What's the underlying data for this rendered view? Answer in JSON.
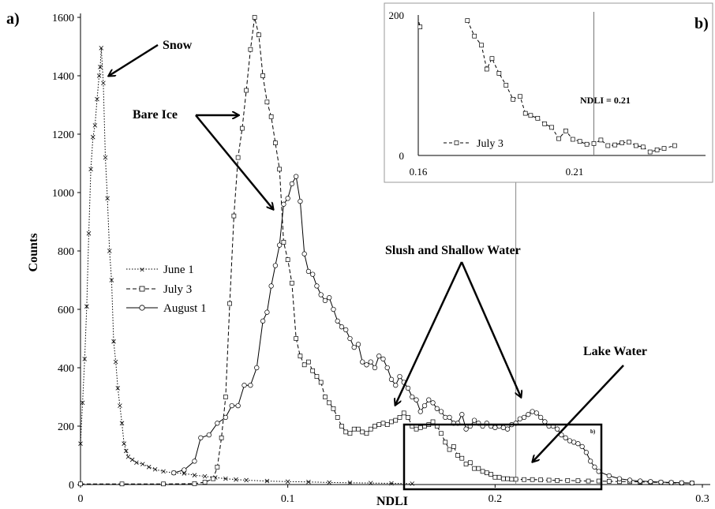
{
  "chart_data": {
    "type": "line",
    "panel_labels": {
      "main": "a)",
      "inset": "b)",
      "box": "b)"
    },
    "xlabel": "NDLI",
    "ylabel": "Counts",
    "xlim": [
      0,
      0.3
    ],
    "ylim": [
      0,
      1600
    ],
    "x_ticks": [
      0,
      0.1,
      0.2,
      0.3
    ],
    "x_tick_labels": [
      "0",
      "0.1",
      "0.2",
      "0.3"
    ],
    "y_ticks": [
      0,
      200,
      400,
      600,
      800,
      1000,
      1200,
      1400,
      1600
    ],
    "y_tick_labels": [
      "0",
      "200",
      "400",
      "600",
      "800",
      "1000",
      "1200",
      "1400",
      "1600"
    ],
    "legend": {
      "placement": "center-left",
      "entries": [
        "June 1",
        "July 3",
        "August 1"
      ]
    },
    "series": [
      {
        "name": "June 1",
        "style": "dotted",
        "marker": "x",
        "points": [
          [
            0,
            140
          ],
          [
            0.001,
            280
          ],
          [
            0.002,
            430
          ],
          [
            0.003,
            610
          ],
          [
            0.004,
            860
          ],
          [
            0.005,
            1080
          ],
          [
            0.006,
            1190
          ],
          [
            0.007,
            1230
          ],
          [
            0.008,
            1320
          ],
          [
            0.009,
            1400
          ],
          [
            0.0095,
            1430
          ],
          [
            0.01,
            1495
          ],
          [
            0.011,
            1375
          ],
          [
            0.012,
            1120
          ],
          [
            0.013,
            980
          ],
          [
            0.014,
            800
          ],
          [
            0.015,
            700
          ],
          [
            0.016,
            490
          ],
          [
            0.017,
            420
          ],
          [
            0.018,
            330
          ],
          [
            0.019,
            270
          ],
          [
            0.02,
            210
          ],
          [
            0.021,
            140
          ],
          [
            0.022,
            115
          ],
          [
            0.023,
            95
          ],
          [
            0.025,
            85
          ],
          [
            0.027,
            75
          ],
          [
            0.03,
            70
          ],
          [
            0.033,
            60
          ],
          [
            0.036,
            52
          ],
          [
            0.04,
            45
          ],
          [
            0.045,
            40
          ],
          [
            0.05,
            38
          ],
          [
            0.055,
            32
          ],
          [
            0.06,
            28
          ],
          [
            0.065,
            24
          ],
          [
            0.07,
            20
          ],
          [
            0.075,
            17
          ],
          [
            0.08,
            15
          ],
          [
            0.09,
            12
          ],
          [
            0.1,
            10
          ],
          [
            0.11,
            9
          ],
          [
            0.12,
            7
          ],
          [
            0.13,
            6
          ],
          [
            0.14,
            5
          ],
          [
            0.15,
            4
          ],
          [
            0.16,
            3
          ]
        ]
      },
      {
        "name": "July 3",
        "style": "dashed",
        "marker": "square",
        "points": [
          [
            0,
            2
          ],
          [
            0.02,
            2
          ],
          [
            0.04,
            2
          ],
          [
            0.055,
            3
          ],
          [
            0.06,
            8
          ],
          [
            0.064,
            20
          ],
          [
            0.066,
            60
          ],
          [
            0.068,
            160
          ],
          [
            0.07,
            300
          ],
          [
            0.072,
            620
          ],
          [
            0.074,
            920
          ],
          [
            0.076,
            1120
          ],
          [
            0.078,
            1220
          ],
          [
            0.08,
            1350
          ],
          [
            0.082,
            1490
          ],
          [
            0.084,
            1600
          ],
          [
            0.086,
            1540
          ],
          [
            0.088,
            1400
          ],
          [
            0.09,
            1310
          ],
          [
            0.092,
            1260
          ],
          [
            0.094,
            1170
          ],
          [
            0.096,
            1080
          ],
          [
            0.098,
            830
          ],
          [
            0.1,
            770
          ],
          [
            0.102,
            690
          ],
          [
            0.104,
            500
          ],
          [
            0.106,
            440
          ],
          [
            0.108,
            410
          ],
          [
            0.11,
            420
          ],
          [
            0.112,
            390
          ],
          [
            0.114,
            370
          ],
          [
            0.116,
            350
          ],
          [
            0.118,
            300
          ],
          [
            0.12,
            280
          ],
          [
            0.122,
            260
          ],
          [
            0.124,
            230
          ],
          [
            0.126,
            200
          ],
          [
            0.128,
            180
          ],
          [
            0.13,
            175
          ],
          [
            0.132,
            190
          ],
          [
            0.134,
            190
          ],
          [
            0.136,
            180
          ],
          [
            0.138,
            175
          ],
          [
            0.14,
            190
          ],
          [
            0.142,
            200
          ],
          [
            0.144,
            205
          ],
          [
            0.146,
            210
          ],
          [
            0.148,
            205
          ],
          [
            0.15,
            215
          ],
          [
            0.152,
            220
          ],
          [
            0.154,
            230
          ],
          [
            0.156,
            245
          ],
          [
            0.158,
            230
          ],
          [
            0.16,
            200
          ],
          [
            0.162,
            190
          ],
          [
            0.164,
            195
          ],
          [
            0.166,
            200
          ],
          [
            0.168,
            205
          ],
          [
            0.17,
            215
          ],
          [
            0.172,
            200
          ],
          [
            0.174,
            175
          ],
          [
            0.176,
            145
          ],
          [
            0.178,
            120
          ],
          [
            0.18,
            130
          ],
          [
            0.182,
            100
          ],
          [
            0.184,
            90
          ],
          [
            0.186,
            70
          ],
          [
            0.188,
            75
          ],
          [
            0.19,
            55
          ],
          [
            0.192,
            55
          ],
          [
            0.194,
            45
          ],
          [
            0.196,
            40
          ],
          [
            0.198,
            35
          ],
          [
            0.2,
            25
          ],
          [
            0.202,
            25
          ],
          [
            0.204,
            20
          ],
          [
            0.206,
            20
          ],
          [
            0.208,
            18
          ],
          [
            0.21,
            18
          ],
          [
            0.214,
            17
          ],
          [
            0.218,
            17
          ],
          [
            0.222,
            16
          ],
          [
            0.226,
            15
          ],
          [
            0.23,
            14
          ],
          [
            0.235,
            14
          ],
          [
            0.24,
            13
          ],
          [
            0.245,
            12
          ],
          [
            0.25,
            12
          ],
          [
            0.255,
            11
          ],
          [
            0.26,
            10
          ],
          [
            0.265,
            10
          ],
          [
            0.27,
            9
          ],
          [
            0.275,
            8
          ],
          [
            0.28,
            7
          ],
          [
            0.285,
            6
          ],
          [
            0.29,
            5
          ],
          [
            0.295,
            5
          ]
        ]
      },
      {
        "name": "August 1",
        "style": "solid",
        "marker": "circle",
        "points": [
          [
            0.045,
            40
          ],
          [
            0.05,
            50
          ],
          [
            0.055,
            80
          ],
          [
            0.058,
            160
          ],
          [
            0.062,
            170
          ],
          [
            0.066,
            210
          ],
          [
            0.07,
            230
          ],
          [
            0.073,
            270
          ],
          [
            0.076,
            270
          ],
          [
            0.079,
            340
          ],
          [
            0.082,
            340
          ],
          [
            0.085,
            400
          ],
          [
            0.088,
            560
          ],
          [
            0.09,
            590
          ],
          [
            0.092,
            680
          ],
          [
            0.094,
            750
          ],
          [
            0.096,
            820
          ],
          [
            0.098,
            960
          ],
          [
            0.1,
            980
          ],
          [
            0.102,
            1030
          ],
          [
            0.104,
            1055
          ],
          [
            0.106,
            970
          ],
          [
            0.108,
            790
          ],
          [
            0.11,
            730
          ],
          [
            0.112,
            720
          ],
          [
            0.114,
            680
          ],
          [
            0.116,
            650
          ],
          [
            0.118,
            630
          ],
          [
            0.12,
            640
          ],
          [
            0.122,
            600
          ],
          [
            0.124,
            560
          ],
          [
            0.126,
            540
          ],
          [
            0.128,
            530
          ],
          [
            0.13,
            500
          ],
          [
            0.132,
            470
          ],
          [
            0.134,
            480
          ],
          [
            0.136,
            420
          ],
          [
            0.138,
            410
          ],
          [
            0.14,
            420
          ],
          [
            0.142,
            400
          ],
          [
            0.144,
            440
          ],
          [
            0.146,
            430
          ],
          [
            0.148,
            400
          ],
          [
            0.15,
            360
          ],
          [
            0.152,
            340
          ],
          [
            0.154,
            370
          ],
          [
            0.156,
            350
          ],
          [
            0.158,
            330
          ],
          [
            0.16,
            300
          ],
          [
            0.162,
            290
          ],
          [
            0.164,
            250
          ],
          [
            0.166,
            270
          ],
          [
            0.168,
            290
          ],
          [
            0.17,
            280
          ],
          [
            0.172,
            260
          ],
          [
            0.174,
            250
          ],
          [
            0.176,
            230
          ],
          [
            0.178,
            230
          ],
          [
            0.18,
            210
          ],
          [
            0.182,
            210
          ],
          [
            0.184,
            240
          ],
          [
            0.186,
            190
          ],
          [
            0.188,
            200
          ],
          [
            0.19,
            220
          ],
          [
            0.192,
            210
          ],
          [
            0.194,
            200
          ],
          [
            0.196,
            210
          ],
          [
            0.198,
            200
          ],
          [
            0.2,
            195
          ],
          [
            0.202,
            200
          ],
          [
            0.204,
            195
          ],
          [
            0.206,
            190
          ],
          [
            0.208,
            205
          ],
          [
            0.21,
            210
          ],
          [
            0.212,
            225
          ],
          [
            0.214,
            230
          ],
          [
            0.216,
            240
          ],
          [
            0.218,
            250
          ],
          [
            0.22,
            245
          ],
          [
            0.222,
            230
          ],
          [
            0.224,
            215
          ],
          [
            0.226,
            200
          ],
          [
            0.228,
            200
          ],
          [
            0.23,
            190
          ],
          [
            0.232,
            170
          ],
          [
            0.234,
            160
          ],
          [
            0.236,
            150
          ],
          [
            0.238,
            145
          ],
          [
            0.24,
            140
          ],
          [
            0.242,
            130
          ],
          [
            0.244,
            110
          ],
          [
            0.246,
            80
          ],
          [
            0.248,
            60
          ],
          [
            0.25,
            45
          ],
          [
            0.255,
            30
          ],
          [
            0.26,
            20
          ],
          [
            0.265,
            15
          ],
          [
            0.27,
            12
          ],
          [
            0.275,
            10
          ],
          [
            0.28,
            8
          ],
          [
            0.285,
            7
          ],
          [
            0.29,
            6
          ],
          [
            0.295,
            5
          ]
        ]
      }
    ],
    "annotations": [
      "Snow",
      "Bare Ice",
      "Slush and Shallow Water",
      "Lake Water"
    ],
    "reference_line": {
      "x": 0.21
    },
    "inset": {
      "xlim": [
        0.16,
        0.24
      ],
      "ylim": [
        0,
        200
      ],
      "x_tick_labels": [
        "0.16",
        "0.21"
      ],
      "y_tick_labels": [
        "0",
        "200"
      ],
      "legend_entry": "July 3",
      "threshold_label": "NDLI = 0.21",
      "threshold_x": 0.21,
      "series_points": [
        [
          0.1595,
          205
        ],
        [
          0.1605,
          183
        ],
        [
          0.174,
          192
        ],
        [
          0.176,
          170
        ],
        [
          0.178,
          157
        ],
        [
          0.1795,
          123
        ],
        [
          0.181,
          138
        ],
        [
          0.183,
          117
        ],
        [
          0.185,
          100
        ],
        [
          0.187,
          80
        ],
        [
          0.189,
          84
        ],
        [
          0.1905,
          60
        ],
        [
          0.192,
          57
        ],
        [
          0.194,
          53
        ],
        [
          0.196,
          45
        ],
        [
          0.198,
          40
        ],
        [
          0.2,
          24
        ],
        [
          0.202,
          35
        ],
        [
          0.204,
          23
        ],
        [
          0.206,
          20
        ],
        [
          0.208,
          16
        ],
        [
          0.21,
          17
        ],
        [
          0.212,
          22
        ],
        [
          0.214,
          14
        ],
        [
          0.216,
          15
        ],
        [
          0.218,
          18
        ],
        [
          0.22,
          19
        ],
        [
          0.222,
          14
        ],
        [
          0.224,
          12
        ],
        [
          0.226,
          5
        ],
        [
          0.228,
          8
        ],
        [
          0.23,
          10
        ],
        [
          0.233,
          14
        ]
      ]
    }
  }
}
